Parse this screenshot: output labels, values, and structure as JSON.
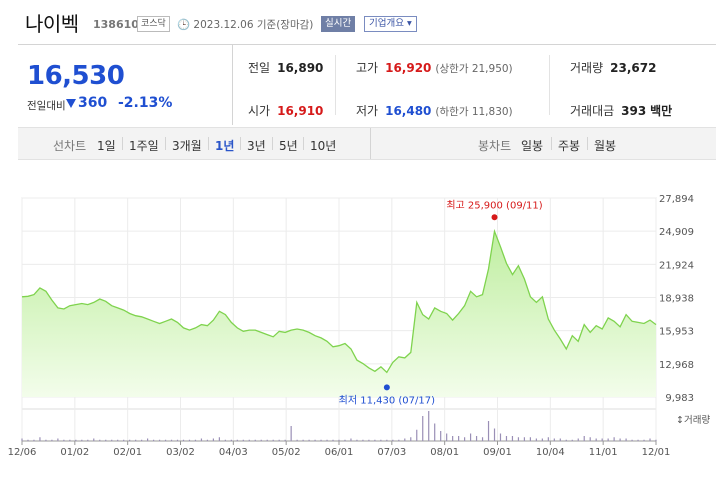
{
  "header": {
    "stock_name": "나이벡",
    "stock_code": "138610",
    "market_badge": "코스닥",
    "date": "2023.12.06",
    "date_suffix": "기준(장마감)",
    "live_button": "실시간",
    "info_button": "기업개요 ▾"
  },
  "quote": {
    "price": "16,530",
    "change_label": "전일대비",
    "change": "360",
    "change_pct": "-2.13%",
    "direction": "down",
    "cells": {
      "prev_close": {
        "label": "전일",
        "value": "16,890"
      },
      "high": {
        "label": "고가",
        "value": "16,920",
        "sub": "(상한가 21,950)"
      },
      "volume": {
        "label": "거래량",
        "value": "23,672"
      },
      "open": {
        "label": "시가",
        "value": "16,910"
      },
      "low": {
        "label": "저가",
        "value": "16,480",
        "sub": "(하한가 11,830)"
      },
      "amount": {
        "label": "거래대금",
        "value": "393",
        "unit": "백만"
      }
    }
  },
  "period_bar": {
    "line_label": "선차트",
    "line_items": [
      "1일",
      "1주일",
      "3개월",
      "1년",
      "3년",
      "5년",
      "10년"
    ],
    "active_line": "1년",
    "candle_label": "봉차트",
    "candle_items": [
      "일봉",
      "주봉",
      "월봉"
    ]
  },
  "colors": {
    "up": "#d61a1a",
    "down": "#1f4fd1",
    "line": "#7fd34e",
    "fill_top": "#bfeea0",
    "fill_bottom": "#f3fdeb",
    "volume_bar": "#9a8fb6"
  },
  "chart_data": {
    "type": "area",
    "y_ticks": [
      "27,894",
      "24,909",
      "21,924",
      "18,938",
      "15,953",
      "12,968",
      "9,983"
    ],
    "ylim": [
      9983,
      27894
    ],
    "x_ticks": [
      "12/06",
      "01/02",
      "02/01",
      "03/02",
      "04/03",
      "05/02",
      "06/01",
      "07/03",
      "08/01",
      "09/01",
      "10/04",
      "11/01",
      "12/01"
    ],
    "series": [
      {
        "values": [
          19000,
          19050,
          19200,
          19800,
          19500,
          18700,
          18000,
          17900,
          18200,
          18300,
          18400,
          18300,
          18500,
          18800,
          18600,
          18200,
          18000,
          17800,
          17500,
          17300,
          17200,
          17000,
          16800,
          16600,
          16800,
          17000,
          16700,
          16200,
          16000,
          16200,
          16500,
          16400,
          16900,
          17700,
          17400,
          16700,
          16200,
          15900,
          16000,
          16000,
          15800,
          15600,
          15400,
          15900,
          15800,
          16000,
          16100,
          16000,
          15800,
          15500,
          15300,
          15000,
          14500,
          14600,
          14800,
          14300,
          13300,
          13000,
          12600,
          12300,
          12700,
          12200,
          13100,
          13600,
          13500,
          14000,
          18500,
          17400,
          17000,
          18000,
          17700,
          17500,
          16900,
          17500,
          18200,
          19500,
          19000,
          19200,
          21500,
          24900,
          23500,
          22000,
          21000,
          21800,
          20600,
          19000,
          18500,
          19000,
          17000,
          16000,
          15200,
          14300,
          15500,
          15000,
          16500,
          15800,
          16400,
          16100,
          17100,
          16800,
          16300,
          17400,
          16800,
          16700,
          16600,
          16900,
          16500
        ],
        "volume": [
          2,
          1,
          1,
          3,
          1,
          1,
          2,
          1,
          1,
          1,
          1,
          1,
          2,
          1,
          1,
          1,
          1,
          1,
          1,
          1,
          1,
          2,
          1,
          1,
          1,
          1,
          1,
          1,
          1,
          1,
          2,
          1,
          2,
          3,
          1,
          1,
          1,
          1,
          1,
          1,
          1,
          1,
          1,
          1,
          1,
          12,
          1,
          1,
          1,
          1,
          1,
          1,
          1,
          1,
          1,
          2,
          1,
          1,
          1,
          1,
          1,
          1,
          1,
          1,
          2,
          3,
          9,
          20,
          24,
          14,
          8,
          6,
          4,
          4,
          3,
          6,
          4,
          3,
          16,
          10,
          6,
          4,
          4,
          3,
          3,
          3,
          2,
          2,
          3,
          2,
          2,
          1,
          1,
          2,
          4,
          3,
          2,
          2,
          2,
          3,
          2,
          2,
          1,
          1,
          1,
          2,
          1
        ]
      }
    ],
    "annotations": {
      "high": {
        "label": "최고",
        "value": "25,900",
        "date": "(09/11)"
      },
      "low": {
        "label": "최저",
        "value": "11,430",
        "date": "(07/17)"
      }
    },
    "volume_label": "거래량"
  }
}
